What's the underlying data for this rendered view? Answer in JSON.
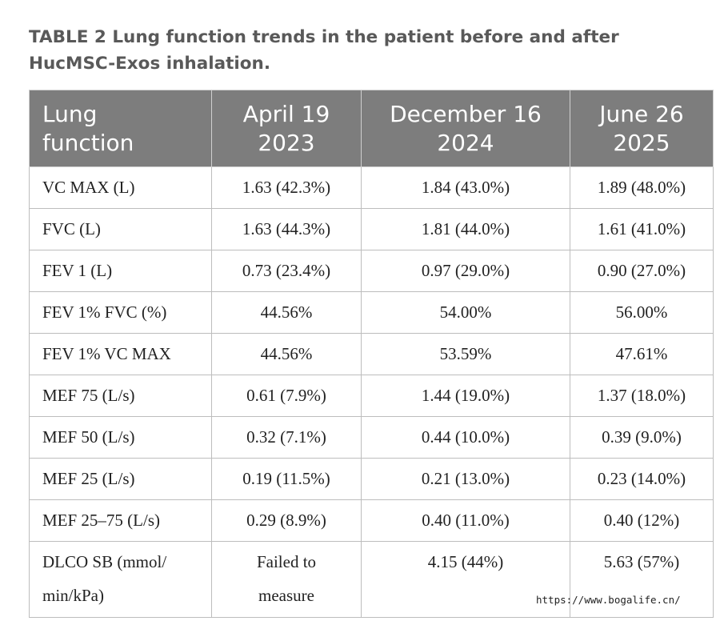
{
  "caption": "TABLE 2  Lung function trends in the patient before and after HucMSC-Exos inhalation.",
  "table": {
    "headers": [
      [
        "Lung",
        "function"
      ],
      [
        "April 19",
        "2023"
      ],
      [
        "December 16",
        "2024"
      ],
      [
        "June 26",
        "2025"
      ]
    ],
    "rows": [
      {
        "label": "VC MAX (L)",
        "values": [
          "1.63 (42.3%)",
          "1.84 (43.0%)",
          "1.89 (48.0%)"
        ]
      },
      {
        "label": "FVC (L)",
        "values": [
          "1.63 (44.3%)",
          "1.81 (44.0%)",
          "1.61 (41.0%)"
        ]
      },
      {
        "label": "FEV 1 (L)",
        "values": [
          "0.73 (23.4%)",
          "0.97 (29.0%)",
          "0.90 (27.0%)"
        ]
      },
      {
        "label": "FEV 1% FVC (%)",
        "values": [
          "44.56%",
          "54.00%",
          "56.00%"
        ]
      },
      {
        "label": "FEV 1% VC MAX",
        "values": [
          "44.56%",
          "53.59%",
          "47.61%"
        ]
      },
      {
        "label": "MEF 75 (L/s)",
        "values": [
          "0.61 (7.9%)",
          "1.44 (19.0%)",
          "1.37 (18.0%)"
        ]
      },
      {
        "label": "MEF 50 (L/s)",
        "values": [
          "0.32 (7.1%)",
          "0.44 (10.0%)",
          "0.39 (9.0%)"
        ]
      },
      {
        "label": "MEF 25 (L/s)",
        "values": [
          "0.19 (11.5%)",
          "0.21 (13.0%)",
          "0.23 (14.0%)"
        ]
      },
      {
        "label": "MEF 25–75 (L/s)",
        "values": [
          "0.29 (8.9%)",
          "0.40 (11.0%)",
          "0.40 (12%)"
        ]
      },
      {
        "label": [
          "DLCO SB (mmol/",
          "min/kPa)"
        ],
        "values": [
          [
            "Failed to",
            "measure"
          ],
          "4.15 (44%)",
          "5.63 (57%)"
        ]
      }
    ]
  },
  "watermark": "https://www.bogalife.cn/",
  "colors": {
    "header_bg": "#7d7d7d",
    "header_text": "#ffffff",
    "caption_text": "#595959",
    "border": "#bdbdbd"
  }
}
